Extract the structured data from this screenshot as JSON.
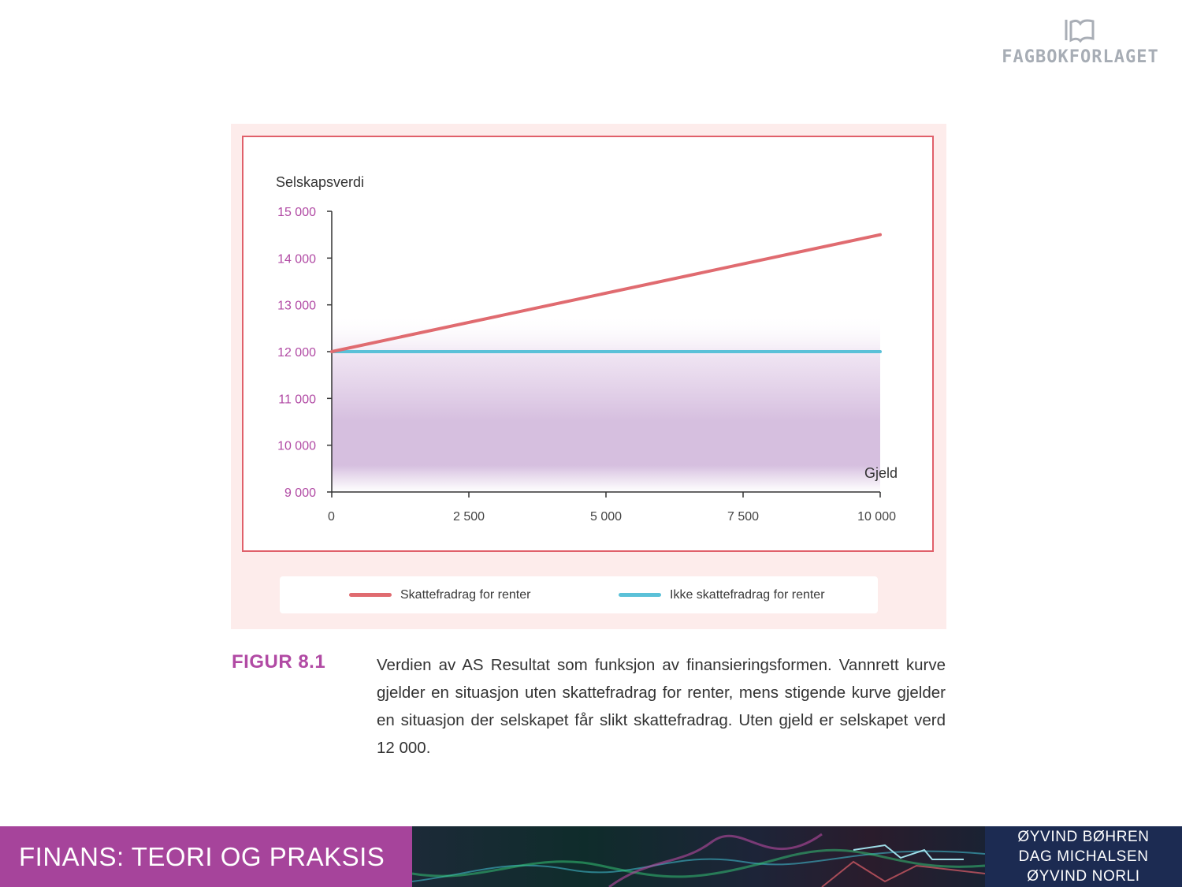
{
  "publisher": {
    "name": "FAGBOKFORLAGET",
    "logo": "book-logo-icon"
  },
  "chart_data": {
    "type": "line",
    "title": "",
    "ylabel": "Selskapsverdi",
    "xlabel": "Gjeld",
    "xlim": [
      0,
      10000
    ],
    "ylim": [
      9000,
      15000
    ],
    "xticks": [
      0,
      2500,
      5000,
      7500,
      10000
    ],
    "xtick_labels": [
      "0",
      "2 500",
      "5 000",
      "7 500",
      "10 000"
    ],
    "yticks": [
      9000,
      10000,
      11000,
      12000,
      13000,
      14000,
      15000
    ],
    "ytick_labels": [
      "9 000",
      "10 000",
      "11 000",
      "12 000",
      "13 000",
      "14 000",
      "15 000"
    ],
    "grid": false,
    "legend_position": "bottom",
    "series": [
      {
        "name": "Skattefradrag for renter",
        "x": [
          0,
          10000
        ],
        "y": [
          12000,
          14500
        ],
        "color": "#e06b70"
      },
      {
        "name": "Ikke skattefradrag for renter",
        "x": [
          0,
          10000
        ],
        "y": [
          12000,
          12000
        ],
        "color": "#5bc1d8"
      }
    ],
    "colors": {
      "axis": "#333333",
      "ytick_label": "#b14aa4",
      "frame": "#e0606a",
      "fill": "#d6bfdf"
    }
  },
  "caption": {
    "label": "FIGUR 8.1",
    "text": "Verdien av AS Resultat som funksjon av finansieringsformen. Vannrett kurve gjelder en situasjon uten skattefradrag for renter, mens stigende kurve gjelder en situasjon der selskapet får slikt skattefradrag. Uten gjeld er selskapet verd 12 000."
  },
  "footer": {
    "title": "FINANS: TEORI OG PRAKSIS",
    "authors": [
      "ØYVIND BØHREN",
      "DAG MICHALSEN",
      "ØYVIND NORLI"
    ],
    "colors": {
      "title_bg": "#a6449b",
      "authors_bg": "#1c2b52"
    }
  }
}
